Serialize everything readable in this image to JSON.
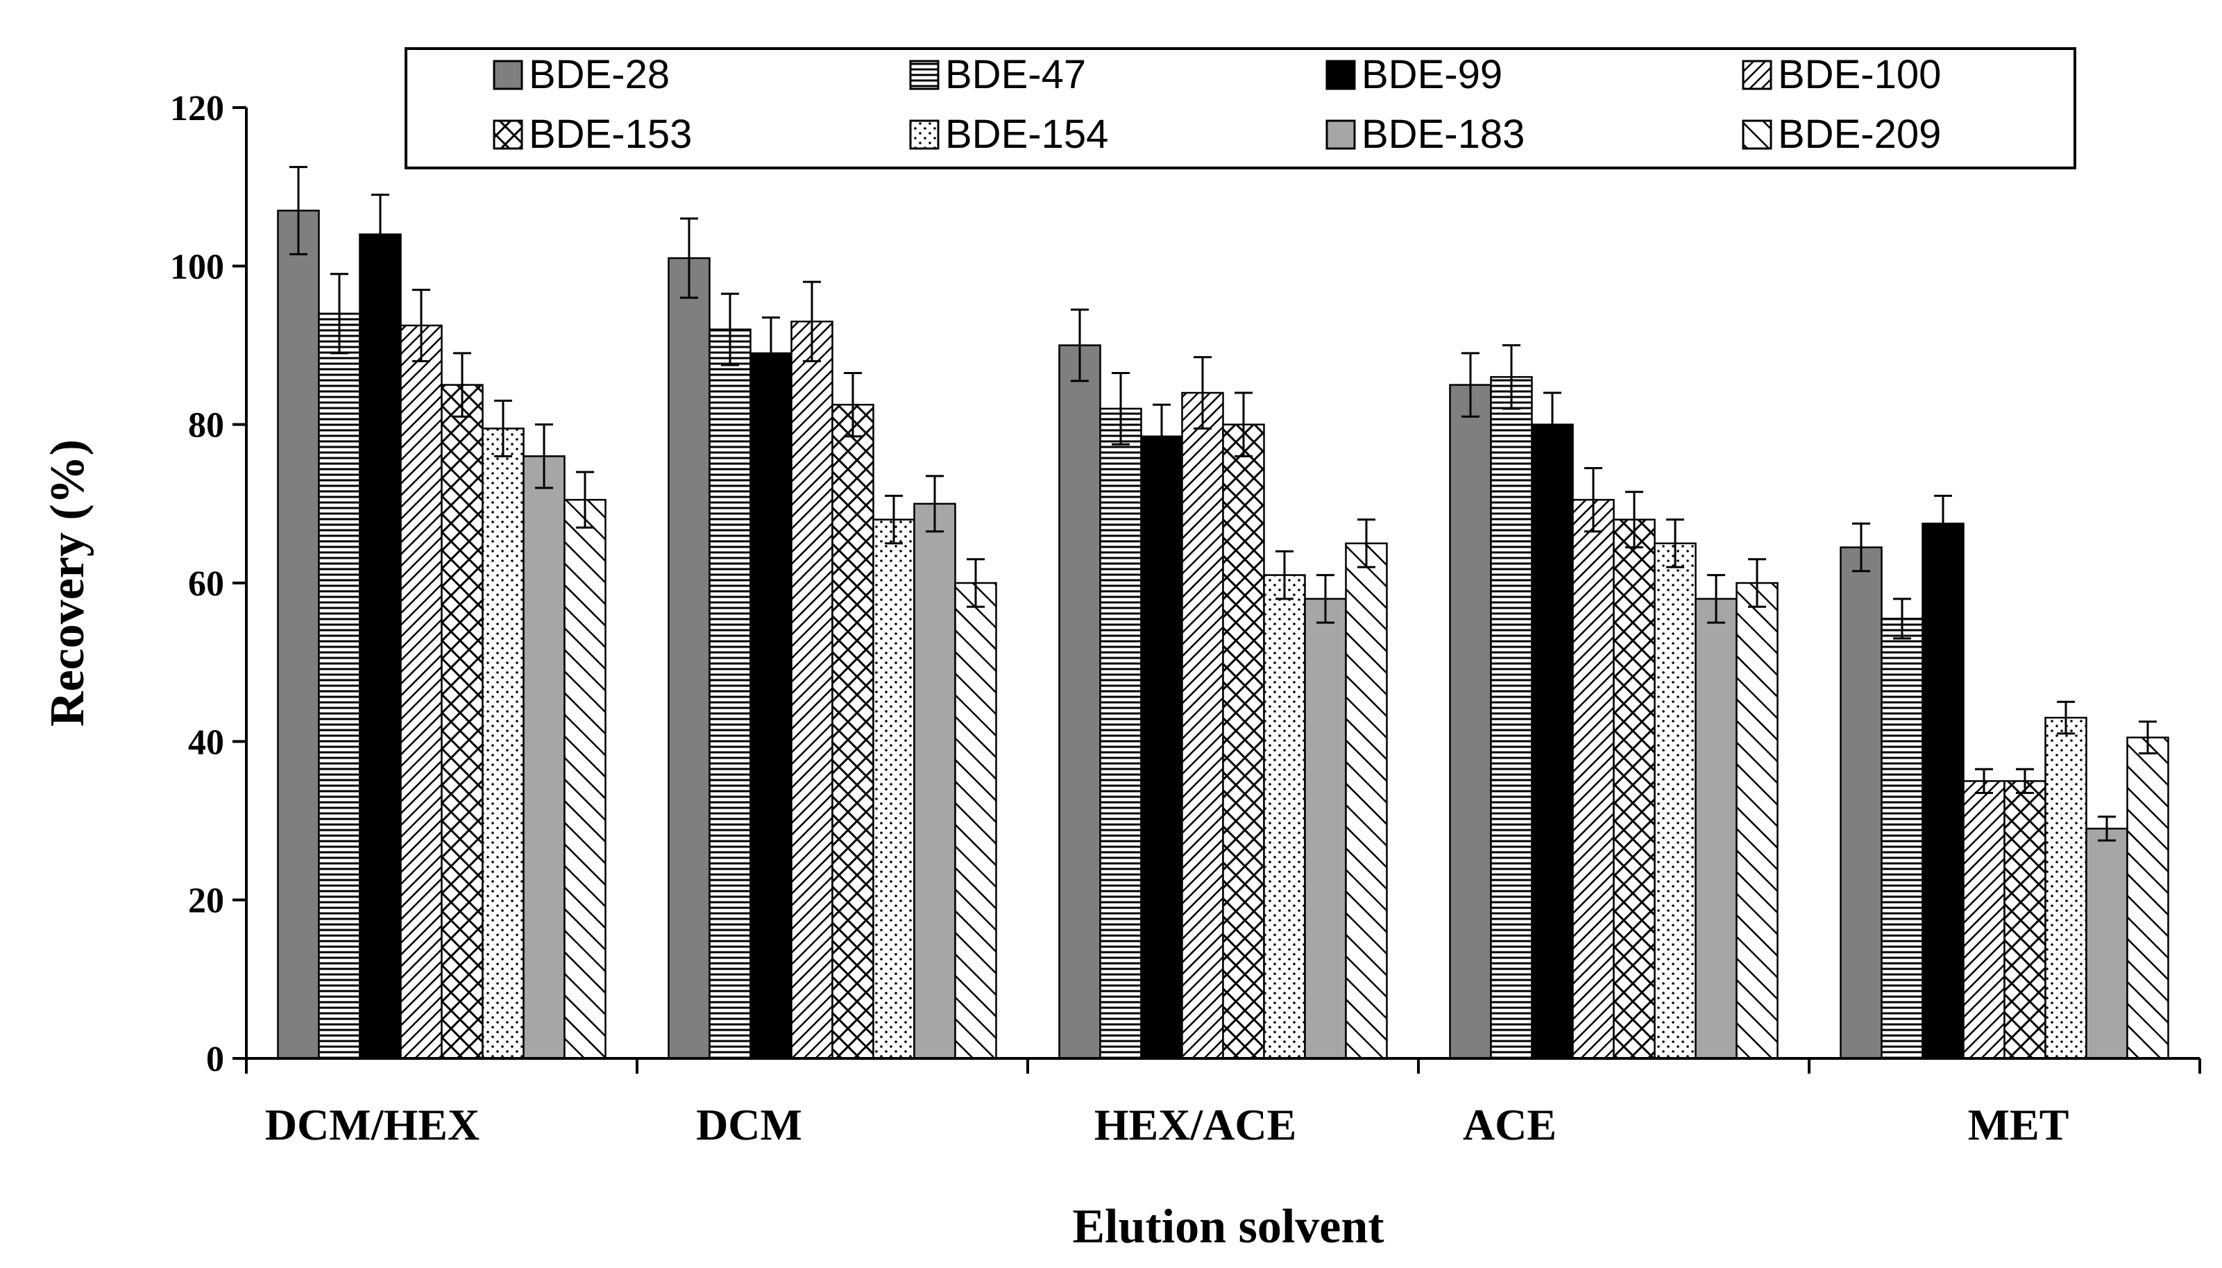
{
  "chart_data": {
    "type": "bar",
    "title": "",
    "xlabel": "Elution solvent",
    "ylabel": "Recovery (%)",
    "ylim": [
      0,
      120
    ],
    "yticks": [
      0,
      20,
      40,
      60,
      80,
      100,
      120
    ],
    "grid": false,
    "legend_position": "top",
    "categories": [
      "DCM/HEX",
      "DCM",
      "HEX/ACE",
      "ACE",
      "MET"
    ],
    "series": [
      {
        "name": "BDE-28",
        "values": [
          107,
          101,
          90,
          85,
          64.5
        ],
        "errors": [
          5.5,
          5,
          4.5,
          4,
          3
        ],
        "color": "#7f7f7f",
        "pattern": "solid"
      },
      {
        "name": "BDE-47",
        "values": [
          94,
          92,
          82,
          86,
          55.5
        ],
        "errors": [
          5,
          4.5,
          4.5,
          4,
          2.5
        ],
        "color": "#ffffff",
        "pattern": "hlines"
      },
      {
        "name": "BDE-99",
        "values": [
          104,
          89,
          78.5,
          80,
          67.5
        ],
        "errors": [
          5,
          4.5,
          4,
          4,
          3.5
        ],
        "color": "#000000",
        "pattern": "solid"
      },
      {
        "name": "BDE-100",
        "values": [
          92.5,
          93,
          84,
          70.5,
          35
        ],
        "errors": [
          4.5,
          5,
          4.5,
          4,
          1.5
        ],
        "color": "#ffffff",
        "pattern": "diag-dense"
      },
      {
        "name": "BDE-153",
        "values": [
          85,
          82.5,
          80,
          68,
          35
        ],
        "errors": [
          4,
          4,
          4,
          3.5,
          1.5
        ],
        "color": "#ffffff",
        "pattern": "crosshatch"
      },
      {
        "name": "BDE-154",
        "values": [
          79.5,
          68,
          61,
          65,
          43
        ],
        "errors": [
          3.5,
          3,
          3,
          3,
          2
        ],
        "color": "#ffffff",
        "pattern": "dots"
      },
      {
        "name": "BDE-183",
        "values": [
          76,
          70,
          58,
          58,
          29
        ],
        "errors": [
          4,
          3.5,
          3,
          3,
          1.5
        ],
        "color": "#a6a6a6",
        "pattern": "solid"
      },
      {
        "name": "BDE-209",
        "values": [
          70.5,
          60,
          65,
          60,
          40.5
        ],
        "errors": [
          3.5,
          3,
          3,
          3,
          2
        ],
        "color": "#ffffff",
        "pattern": "diag-wide"
      }
    ]
  }
}
